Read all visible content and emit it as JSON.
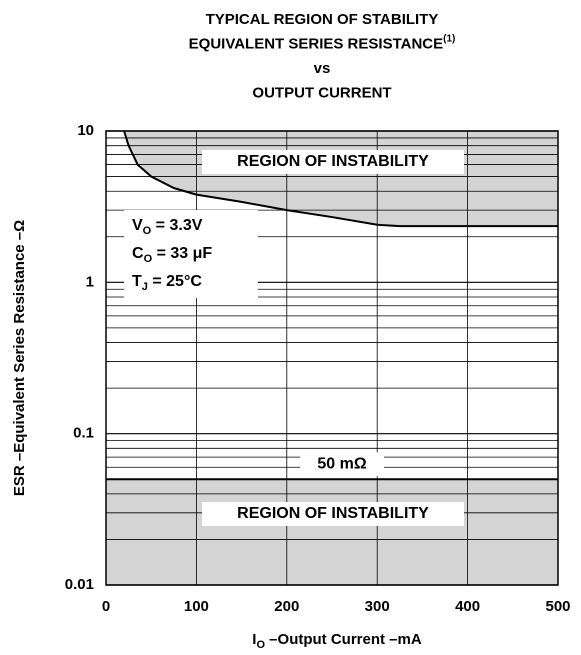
{
  "chart_data": {
    "type": "line",
    "title": [
      "TYPICAL REGION OF STABILITY",
      "EQUIVALENT SERIES RESISTANCE",
      "vs",
      "OUTPUT CURRENT"
    ],
    "title_note": "(1)",
    "y_label": "ESR –Equivalent Series Resistance –Ω",
    "x_label": {
      "sym": "I",
      "sub": "O",
      "rest": " –Output Current –mA"
    },
    "xlim": [
      0,
      500
    ],
    "xticks": [
      0,
      100,
      200,
      300,
      400,
      500
    ],
    "ylim": [
      0.01,
      10
    ],
    "yticks": [
      10,
      1,
      0.1,
      0.01
    ],
    "y_log": true,
    "grid": true,
    "y_minor_grid": [
      0.02,
      0.03,
      0.04,
      0.05,
      0.06,
      0.07,
      0.08,
      0.09,
      0.2,
      0.3,
      0.4,
      0.5,
      0.6,
      0.7,
      0.8,
      0.9,
      2,
      3,
      4,
      5,
      6,
      7,
      8,
      9
    ],
    "region_color": "#d4d4d4",
    "series": [
      {
        "color": "#000000",
        "x": [
          20,
          25,
          35,
          50,
          75,
          100,
          150,
          200,
          250,
          300,
          325,
          500
        ],
        "values": [
          10,
          8,
          6,
          5,
          4.2,
          3.8,
          3.4,
          3.0,
          2.7,
          2.4,
          2.35,
          2.35
        ]
      },
      {
        "color": "#000000",
        "x": [
          0,
          500
        ],
        "values": [
          0.05,
          0.05
        ]
      }
    ],
    "annotations": [
      "REGION OF INSTABILITY",
      "REGION OF INSTABILITY",
      "50 mΩ"
    ],
    "conditions": [
      {
        "sym": "V",
        "sub": "O",
        "rest": " = 3.3V"
      },
      {
        "sym": "C",
        "sub": "O",
        "rest": " = 33 μF"
      },
      {
        "sym": "T",
        "sub": "J",
        "rest": " = 25°C"
      }
    ]
  }
}
